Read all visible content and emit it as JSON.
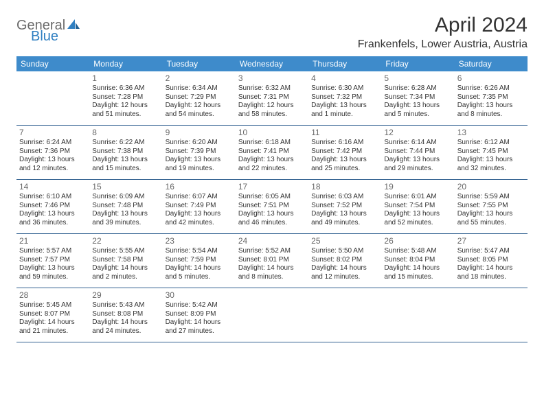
{
  "logo": {
    "part1": "General",
    "part2": "Blue"
  },
  "title": "April 2024",
  "location": "Frankenfels, Lower Austria, Austria",
  "colors": {
    "header_bg": "#3e8bcb",
    "header_text": "#ffffff",
    "day_number": "#686868",
    "body_text": "#333333",
    "divider": "#2f5f8f",
    "logo_gray": "#6b6b6b",
    "logo_blue": "#2f7fc1",
    "background": "#ffffff"
  },
  "weekdays": [
    "Sunday",
    "Monday",
    "Tuesday",
    "Wednesday",
    "Thursday",
    "Friday",
    "Saturday"
  ],
  "weeks": [
    [
      null,
      {
        "n": "1",
        "sr": "Sunrise: 6:36 AM",
        "ss": "Sunset: 7:28 PM",
        "d1": "Daylight: 12 hours",
        "d2": "and 51 minutes."
      },
      {
        "n": "2",
        "sr": "Sunrise: 6:34 AM",
        "ss": "Sunset: 7:29 PM",
        "d1": "Daylight: 12 hours",
        "d2": "and 54 minutes."
      },
      {
        "n": "3",
        "sr": "Sunrise: 6:32 AM",
        "ss": "Sunset: 7:31 PM",
        "d1": "Daylight: 12 hours",
        "d2": "and 58 minutes."
      },
      {
        "n": "4",
        "sr": "Sunrise: 6:30 AM",
        "ss": "Sunset: 7:32 PM",
        "d1": "Daylight: 13 hours",
        "d2": "and 1 minute."
      },
      {
        "n": "5",
        "sr": "Sunrise: 6:28 AM",
        "ss": "Sunset: 7:34 PM",
        "d1": "Daylight: 13 hours",
        "d2": "and 5 minutes."
      },
      {
        "n": "6",
        "sr": "Sunrise: 6:26 AM",
        "ss": "Sunset: 7:35 PM",
        "d1": "Daylight: 13 hours",
        "d2": "and 8 minutes."
      }
    ],
    [
      {
        "n": "7",
        "sr": "Sunrise: 6:24 AM",
        "ss": "Sunset: 7:36 PM",
        "d1": "Daylight: 13 hours",
        "d2": "and 12 minutes."
      },
      {
        "n": "8",
        "sr": "Sunrise: 6:22 AM",
        "ss": "Sunset: 7:38 PM",
        "d1": "Daylight: 13 hours",
        "d2": "and 15 minutes."
      },
      {
        "n": "9",
        "sr": "Sunrise: 6:20 AM",
        "ss": "Sunset: 7:39 PM",
        "d1": "Daylight: 13 hours",
        "d2": "and 19 minutes."
      },
      {
        "n": "10",
        "sr": "Sunrise: 6:18 AM",
        "ss": "Sunset: 7:41 PM",
        "d1": "Daylight: 13 hours",
        "d2": "and 22 minutes."
      },
      {
        "n": "11",
        "sr": "Sunrise: 6:16 AM",
        "ss": "Sunset: 7:42 PM",
        "d1": "Daylight: 13 hours",
        "d2": "and 25 minutes."
      },
      {
        "n": "12",
        "sr": "Sunrise: 6:14 AM",
        "ss": "Sunset: 7:44 PM",
        "d1": "Daylight: 13 hours",
        "d2": "and 29 minutes."
      },
      {
        "n": "13",
        "sr": "Sunrise: 6:12 AM",
        "ss": "Sunset: 7:45 PM",
        "d1": "Daylight: 13 hours",
        "d2": "and 32 minutes."
      }
    ],
    [
      {
        "n": "14",
        "sr": "Sunrise: 6:10 AM",
        "ss": "Sunset: 7:46 PM",
        "d1": "Daylight: 13 hours",
        "d2": "and 36 minutes."
      },
      {
        "n": "15",
        "sr": "Sunrise: 6:09 AM",
        "ss": "Sunset: 7:48 PM",
        "d1": "Daylight: 13 hours",
        "d2": "and 39 minutes."
      },
      {
        "n": "16",
        "sr": "Sunrise: 6:07 AM",
        "ss": "Sunset: 7:49 PM",
        "d1": "Daylight: 13 hours",
        "d2": "and 42 minutes."
      },
      {
        "n": "17",
        "sr": "Sunrise: 6:05 AM",
        "ss": "Sunset: 7:51 PM",
        "d1": "Daylight: 13 hours",
        "d2": "and 46 minutes."
      },
      {
        "n": "18",
        "sr": "Sunrise: 6:03 AM",
        "ss": "Sunset: 7:52 PM",
        "d1": "Daylight: 13 hours",
        "d2": "and 49 minutes."
      },
      {
        "n": "19",
        "sr": "Sunrise: 6:01 AM",
        "ss": "Sunset: 7:54 PM",
        "d1": "Daylight: 13 hours",
        "d2": "and 52 minutes."
      },
      {
        "n": "20",
        "sr": "Sunrise: 5:59 AM",
        "ss": "Sunset: 7:55 PM",
        "d1": "Daylight: 13 hours",
        "d2": "and 55 minutes."
      }
    ],
    [
      {
        "n": "21",
        "sr": "Sunrise: 5:57 AM",
        "ss": "Sunset: 7:57 PM",
        "d1": "Daylight: 13 hours",
        "d2": "and 59 minutes."
      },
      {
        "n": "22",
        "sr": "Sunrise: 5:55 AM",
        "ss": "Sunset: 7:58 PM",
        "d1": "Daylight: 14 hours",
        "d2": "and 2 minutes."
      },
      {
        "n": "23",
        "sr": "Sunrise: 5:54 AM",
        "ss": "Sunset: 7:59 PM",
        "d1": "Daylight: 14 hours",
        "d2": "and 5 minutes."
      },
      {
        "n": "24",
        "sr": "Sunrise: 5:52 AM",
        "ss": "Sunset: 8:01 PM",
        "d1": "Daylight: 14 hours",
        "d2": "and 8 minutes."
      },
      {
        "n": "25",
        "sr": "Sunrise: 5:50 AM",
        "ss": "Sunset: 8:02 PM",
        "d1": "Daylight: 14 hours",
        "d2": "and 12 minutes."
      },
      {
        "n": "26",
        "sr": "Sunrise: 5:48 AM",
        "ss": "Sunset: 8:04 PM",
        "d1": "Daylight: 14 hours",
        "d2": "and 15 minutes."
      },
      {
        "n": "27",
        "sr": "Sunrise: 5:47 AM",
        "ss": "Sunset: 8:05 PM",
        "d1": "Daylight: 14 hours",
        "d2": "and 18 minutes."
      }
    ],
    [
      {
        "n": "28",
        "sr": "Sunrise: 5:45 AM",
        "ss": "Sunset: 8:07 PM",
        "d1": "Daylight: 14 hours",
        "d2": "and 21 minutes."
      },
      {
        "n": "29",
        "sr": "Sunrise: 5:43 AM",
        "ss": "Sunset: 8:08 PM",
        "d1": "Daylight: 14 hours",
        "d2": "and 24 minutes."
      },
      {
        "n": "30",
        "sr": "Sunrise: 5:42 AM",
        "ss": "Sunset: 8:09 PM",
        "d1": "Daylight: 14 hours",
        "d2": "and 27 minutes."
      },
      null,
      null,
      null,
      null
    ]
  ]
}
